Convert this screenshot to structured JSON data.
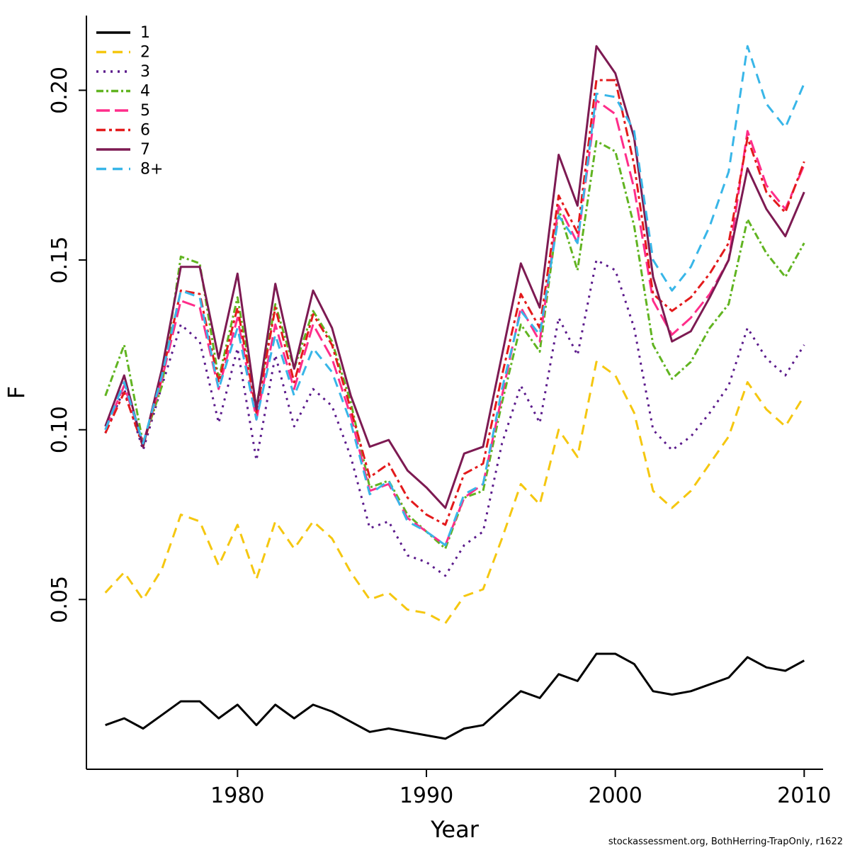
{
  "footer": {
    "text": "stockassessment.org, BothHerring-TrapOnly, r1622"
  },
  "chart_data": {
    "type": "line",
    "title": "",
    "xlabel": "Year",
    "ylabel": "F",
    "xlim": [
      1972,
      2011
    ],
    "ylim": [
      0,
      0.222
    ],
    "xticks": [
      1980,
      1990,
      2000,
      2010
    ],
    "yticks": [
      0.05,
      0.1,
      0.15,
      0.2
    ],
    "grid": false,
    "legend_position": "top-left",
    "x": [
      1973,
      1974,
      1975,
      1976,
      1977,
      1978,
      1979,
      1980,
      1981,
      1982,
      1983,
      1984,
      1985,
      1986,
      1987,
      1988,
      1989,
      1990,
      1991,
      1992,
      1993,
      1994,
      1995,
      1996,
      1997,
      1998,
      1999,
      2000,
      2001,
      2002,
      2003,
      2004,
      2005,
      2006,
      2007,
      2008,
      2009,
      2010
    ],
    "series": [
      {
        "name": "1",
        "color": "#000000",
        "lty": "solid",
        "values": [
          0.013,
          0.015,
          0.012,
          0.016,
          0.02,
          0.02,
          0.015,
          0.019,
          0.013,
          0.019,
          0.015,
          0.019,
          0.017,
          0.014,
          0.011,
          0.012,
          0.011,
          0.01,
          0.009,
          0.012,
          0.013,
          0.018,
          0.023,
          0.021,
          0.028,
          0.026,
          0.034,
          0.034,
          0.031,
          0.023,
          0.022,
          0.023,
          0.025,
          0.027,
          0.033,
          0.03,
          0.029,
          0.032
        ]
      },
      {
        "name": "2",
        "color": "#F5C710",
        "lty": "dashed",
        "values": [
          0.052,
          0.058,
          0.05,
          0.059,
          0.075,
          0.073,
          0.06,
          0.072,
          0.056,
          0.073,
          0.065,
          0.073,
          0.068,
          0.058,
          0.05,
          0.052,
          0.047,
          0.046,
          0.043,
          0.051,
          0.053,
          0.068,
          0.084,
          0.078,
          0.1,
          0.092,
          0.12,
          0.116,
          0.105,
          0.082,
          0.077,
          0.082,
          0.09,
          0.098,
          0.114,
          0.106,
          0.101,
          0.11
        ]
      },
      {
        "name": "3",
        "color": "#5B1A8B",
        "lty": "dotted",
        "values": [
          0.099,
          0.112,
          0.094,
          0.113,
          0.131,
          0.126,
          0.102,
          0.124,
          0.091,
          0.122,
          0.101,
          0.112,
          0.107,
          0.092,
          0.071,
          0.073,
          0.063,
          0.061,
          0.057,
          0.066,
          0.07,
          0.096,
          0.113,
          0.102,
          0.133,
          0.122,
          0.15,
          0.147,
          0.13,
          0.1,
          0.094,
          0.098,
          0.105,
          0.113,
          0.13,
          0.121,
          0.116,
          0.125
        ]
      },
      {
        "name": "4",
        "color": "#61B421",
        "lty": "dashdot2",
        "values": [
          0.11,
          0.125,
          0.096,
          0.113,
          0.151,
          0.149,
          0.115,
          0.139,
          0.107,
          0.137,
          0.118,
          0.135,
          0.126,
          0.108,
          0.083,
          0.085,
          0.075,
          0.07,
          0.065,
          0.08,
          0.082,
          0.108,
          0.131,
          0.123,
          0.165,
          0.147,
          0.185,
          0.182,
          0.16,
          0.125,
          0.115,
          0.12,
          0.13,
          0.137,
          0.162,
          0.152,
          0.145,
          0.155
        ]
      },
      {
        "name": "5",
        "color": "#FF2D8A",
        "lty": "longdash",
        "values": [
          0.1,
          0.113,
          0.096,
          0.115,
          0.138,
          0.136,
          0.112,
          0.133,
          0.103,
          0.131,
          0.112,
          0.131,
          0.121,
          0.104,
          0.082,
          0.084,
          0.074,
          0.07,
          0.066,
          0.08,
          0.084,
          0.11,
          0.136,
          0.126,
          0.166,
          0.155,
          0.197,
          0.193,
          0.171,
          0.138,
          0.128,
          0.133,
          0.14,
          0.15,
          0.188,
          0.172,
          0.165,
          0.178
        ]
      },
      {
        "name": "6",
        "color": "#E31A1C",
        "lty": "dashdot",
        "values": [
          0.099,
          0.111,
          0.095,
          0.116,
          0.141,
          0.14,
          0.114,
          0.136,
          0.105,
          0.136,
          0.114,
          0.134,
          0.125,
          0.106,
          0.086,
          0.09,
          0.08,
          0.075,
          0.072,
          0.087,
          0.09,
          0.116,
          0.14,
          0.13,
          0.169,
          0.158,
          0.203,
          0.203,
          0.178,
          0.14,
          0.135,
          0.139,
          0.146,
          0.155,
          0.186,
          0.17,
          0.164,
          0.179
        ]
      },
      {
        "name": "7",
        "color": "#7D1A52",
        "lty": "solid",
        "values": [
          0.101,
          0.116,
          0.095,
          0.118,
          0.148,
          0.148,
          0.121,
          0.146,
          0.106,
          0.143,
          0.118,
          0.141,
          0.13,
          0.11,
          0.095,
          0.097,
          0.088,
          0.083,
          0.077,
          0.093,
          0.095,
          0.122,
          0.149,
          0.136,
          0.181,
          0.166,
          0.213,
          0.205,
          0.186,
          0.145,
          0.126,
          0.129,
          0.139,
          0.15,
          0.177,
          0.165,
          0.157,
          0.17
        ]
      },
      {
        "name": "8+",
        "color": "#38B6E8",
        "lty": "dashed",
        "values": [
          0.1,
          0.114,
          0.096,
          0.116,
          0.141,
          0.139,
          0.112,
          0.13,
          0.103,
          0.128,
          0.11,
          0.124,
          0.117,
          0.102,
          0.081,
          0.085,
          0.073,
          0.07,
          0.066,
          0.081,
          0.084,
          0.112,
          0.135,
          0.128,
          0.163,
          0.155,
          0.199,
          0.198,
          0.188,
          0.15,
          0.141,
          0.148,
          0.16,
          0.176,
          0.213,
          0.196,
          0.189,
          0.202
        ]
      }
    ]
  }
}
